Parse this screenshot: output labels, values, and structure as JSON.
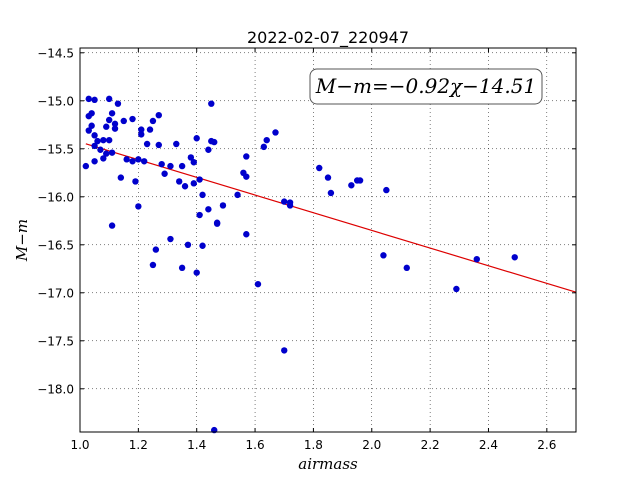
{
  "chart_data": {
    "type": "scatter",
    "title": "2022-02-07_220947",
    "xlabel": "airmass",
    "ylabel": "M−m",
    "xlim": [
      1.0,
      2.7
    ],
    "ylim": [
      -18.45,
      -14.45
    ],
    "y_inverted": true,
    "grid": true,
    "x_ticks": [
      1.0,
      1.2,
      1.4,
      1.6,
      1.8,
      2.0,
      2.2,
      2.4,
      2.6
    ],
    "x_tick_labels": [
      "1.0",
      "1.2",
      "1.4",
      "1.6",
      "1.8",
      "2.0",
      "2.2",
      "2.4",
      "2.6"
    ],
    "y_ticks": [
      -14.5,
      -15.0,
      -15.5,
      -16.0,
      -16.5,
      -17.0,
      -17.5,
      -18.0
    ],
    "y_tick_labels": [
      "−14.5",
      "−15.0",
      "−15.5",
      "−16.0",
      "−16.5",
      "−17.0",
      "−17.5",
      "−18.0"
    ],
    "annotation": "M−m=−0.92χ−14.51",
    "fit": {
      "slope": -0.92,
      "intercept": -14.51,
      "x_range": [
        1.02,
        2.7
      ],
      "color": "#dd0000"
    },
    "marker_color": "#0000cc",
    "series": [
      {
        "x": [
          1.02,
          1.03,
          1.04,
          1.03,
          1.03,
          1.05,
          1.04,
          1.05,
          1.06,
          1.05,
          1.07,
          1.05,
          1.08,
          1.08,
          1.09,
          1.1,
          1.1,
          1.09,
          1.1,
          1.11,
          1.11,
          1.12,
          1.12,
          1.13,
          1.15,
          1.14,
          1.16,
          1.18,
          1.19,
          1.21,
          1.21,
          1.18,
          1.2,
          1.23,
          1.22,
          1.24,
          1.25,
          1.27,
          1.27,
          1.28,
          1.29,
          1.31,
          1.33,
          1.34,
          1.36,
          1.35,
          1.38,
          1.39,
          1.39,
          1.4,
          1.41,
          1.41,
          1.42,
          1.44,
          1.44,
          1.45,
          1.45,
          1.47,
          1.46,
          1.49,
          1.54,
          1.56,
          1.57,
          1.57,
          1.63,
          1.64,
          1.67,
          1.7,
          1.72,
          1.72,
          1.82,
          1.85,
          1.86,
          1.93,
          1.95,
          1.96,
          2.05,
          1.11,
          1.2,
          1.26,
          1.25,
          1.31,
          1.35,
          1.37,
          1.4,
          1.42,
          1.47,
          1.57,
          1.61,
          1.7,
          2.04,
          2.12,
          2.29,
          2.36,
          2.49,
          1.46
        ],
        "y": [
          -15.68,
          -15.16,
          -15.13,
          -14.98,
          -15.31,
          -14.99,
          -15.26,
          -15.36,
          -15.42,
          -15.63,
          -15.51,
          -15.47,
          -15.41,
          -15.6,
          -15.55,
          -14.98,
          -15.2,
          -15.27,
          -15.41,
          -15.54,
          -15.13,
          -15.29,
          -15.24,
          -15.03,
          -15.21,
          -15.8,
          -15.61,
          -15.19,
          -15.84,
          -15.3,
          -15.35,
          -15.63,
          -16.1,
          -15.45,
          -15.63,
          -15.3,
          -15.21,
          -15.15,
          -15.46,
          -15.66,
          -15.76,
          -15.68,
          -15.45,
          -15.84,
          -15.89,
          -15.68,
          -15.59,
          -15.64,
          -15.86,
          -15.39,
          -15.82,
          -16.19,
          -15.98,
          -16.13,
          -15.51,
          -15.03,
          -15.42,
          -16.27,
          -15.43,
          -16.09,
          -15.98,
          -15.75,
          -15.79,
          -15.58,
          -15.48,
          -15.41,
          -15.33,
          -16.05,
          -16.06,
          -16.09,
          -15.7,
          -15.8,
          -15.96,
          -15.88,
          -15.83,
          -15.83,
          -15.93,
          -16.3,
          -15.61,
          -16.55,
          -16.71,
          -16.44,
          -16.74,
          -16.5,
          -16.79,
          -16.51,
          -16.28,
          -16.39,
          -16.91,
          -17.6,
          -16.61,
          -16.74,
          -16.96,
          -16.65,
          -16.63,
          -18.43
        ]
      }
    ]
  }
}
